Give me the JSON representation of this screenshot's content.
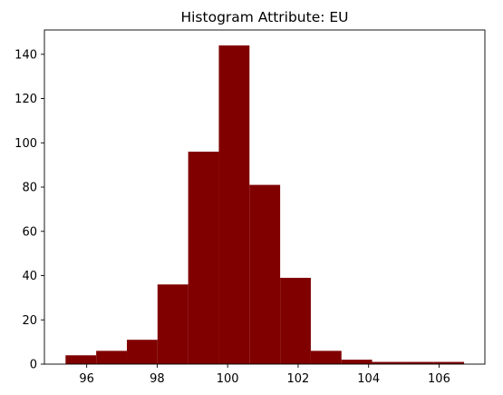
{
  "chart_data": {
    "type": "bar",
    "subtype": "histogram",
    "title": "Histogram Attribute: EU",
    "xlabel": "",
    "ylabel": "",
    "bin_edges": [
      95.4,
      96.27,
      97.14,
      98.01,
      98.88,
      99.75,
      100.62,
      101.49,
      102.36,
      103.23,
      104.1,
      104.97,
      105.84,
      106.71
    ],
    "values": [
      4,
      6,
      11,
      36,
      96,
      144,
      81,
      39,
      6,
      2,
      1,
      1,
      1
    ],
    "xlim": [
      94.8,
      107.3
    ],
    "ylim": [
      0,
      151
    ],
    "xticks": [
      96,
      98,
      100,
      102,
      104,
      106
    ],
    "yticks": [
      0,
      20,
      40,
      60,
      80,
      100,
      120,
      140
    ],
    "bar_color": "#800000",
    "grid": false,
    "legend": "none"
  }
}
